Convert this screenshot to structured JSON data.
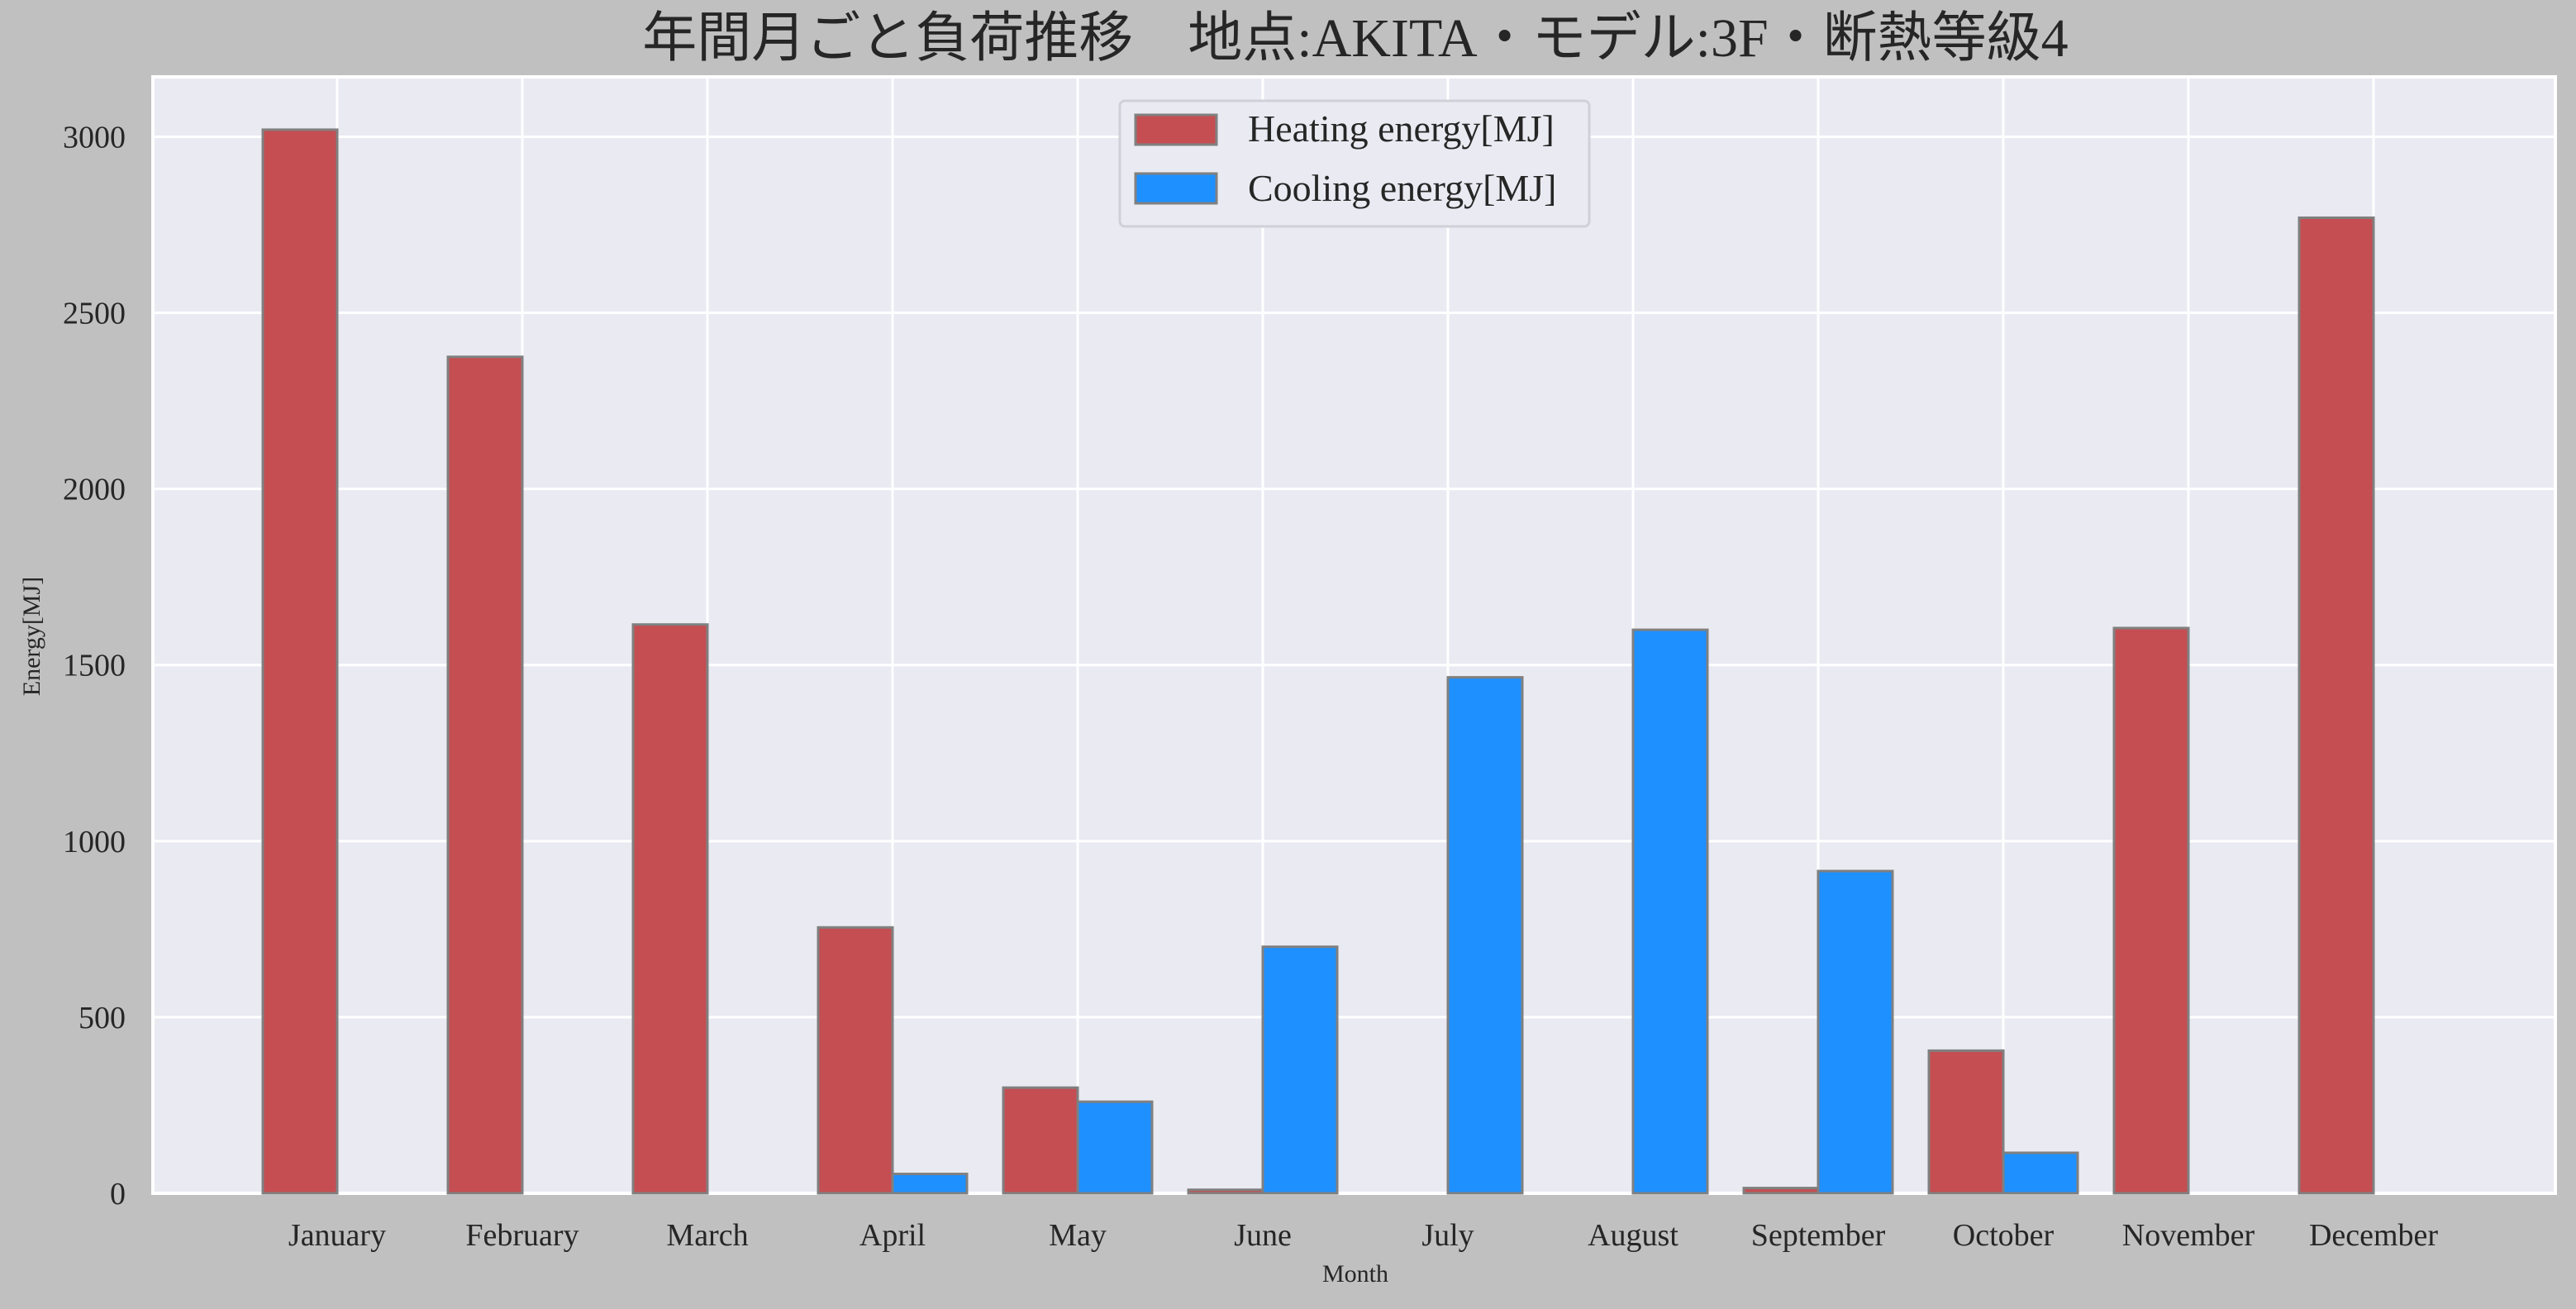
{
  "chart_data": {
    "type": "bar",
    "title": "年間月ごと負荷推移　地点:AKITA・モデル:3F・断熱等級4",
    "xlabel": "Month",
    "ylabel": "Energy[MJ]",
    "categories": [
      "January",
      "February",
      "March",
      "April",
      "May",
      "June",
      "July",
      "August",
      "September",
      "October",
      "November",
      "December"
    ],
    "series": [
      {
        "name": "Heating energy[MJ]",
        "color": "#c44e52",
        "values": [
          3020,
          2375,
          1615,
          755,
          300,
          10,
          0,
          0,
          15,
          405,
          1605,
          2770
        ]
      },
      {
        "name": "Cooling energy[MJ]",
        "color": "#1e90ff",
        "values": [
          0,
          0,
          0,
          55,
          260,
          700,
          1465,
          1600,
          915,
          115,
          0,
          0
        ]
      }
    ],
    "ylim": [
      0,
      3170
    ],
    "yticks": [
      0,
      500,
      1000,
      1500,
      2000,
      2500,
      3000
    ],
    "grid": true,
    "legend": "upper-center",
    "colors": {
      "figure_bg": "#c0c0c0",
      "plot_bg": "#eaeaf2",
      "grid": "#ffffff",
      "bar_edge": "#808080"
    }
  }
}
